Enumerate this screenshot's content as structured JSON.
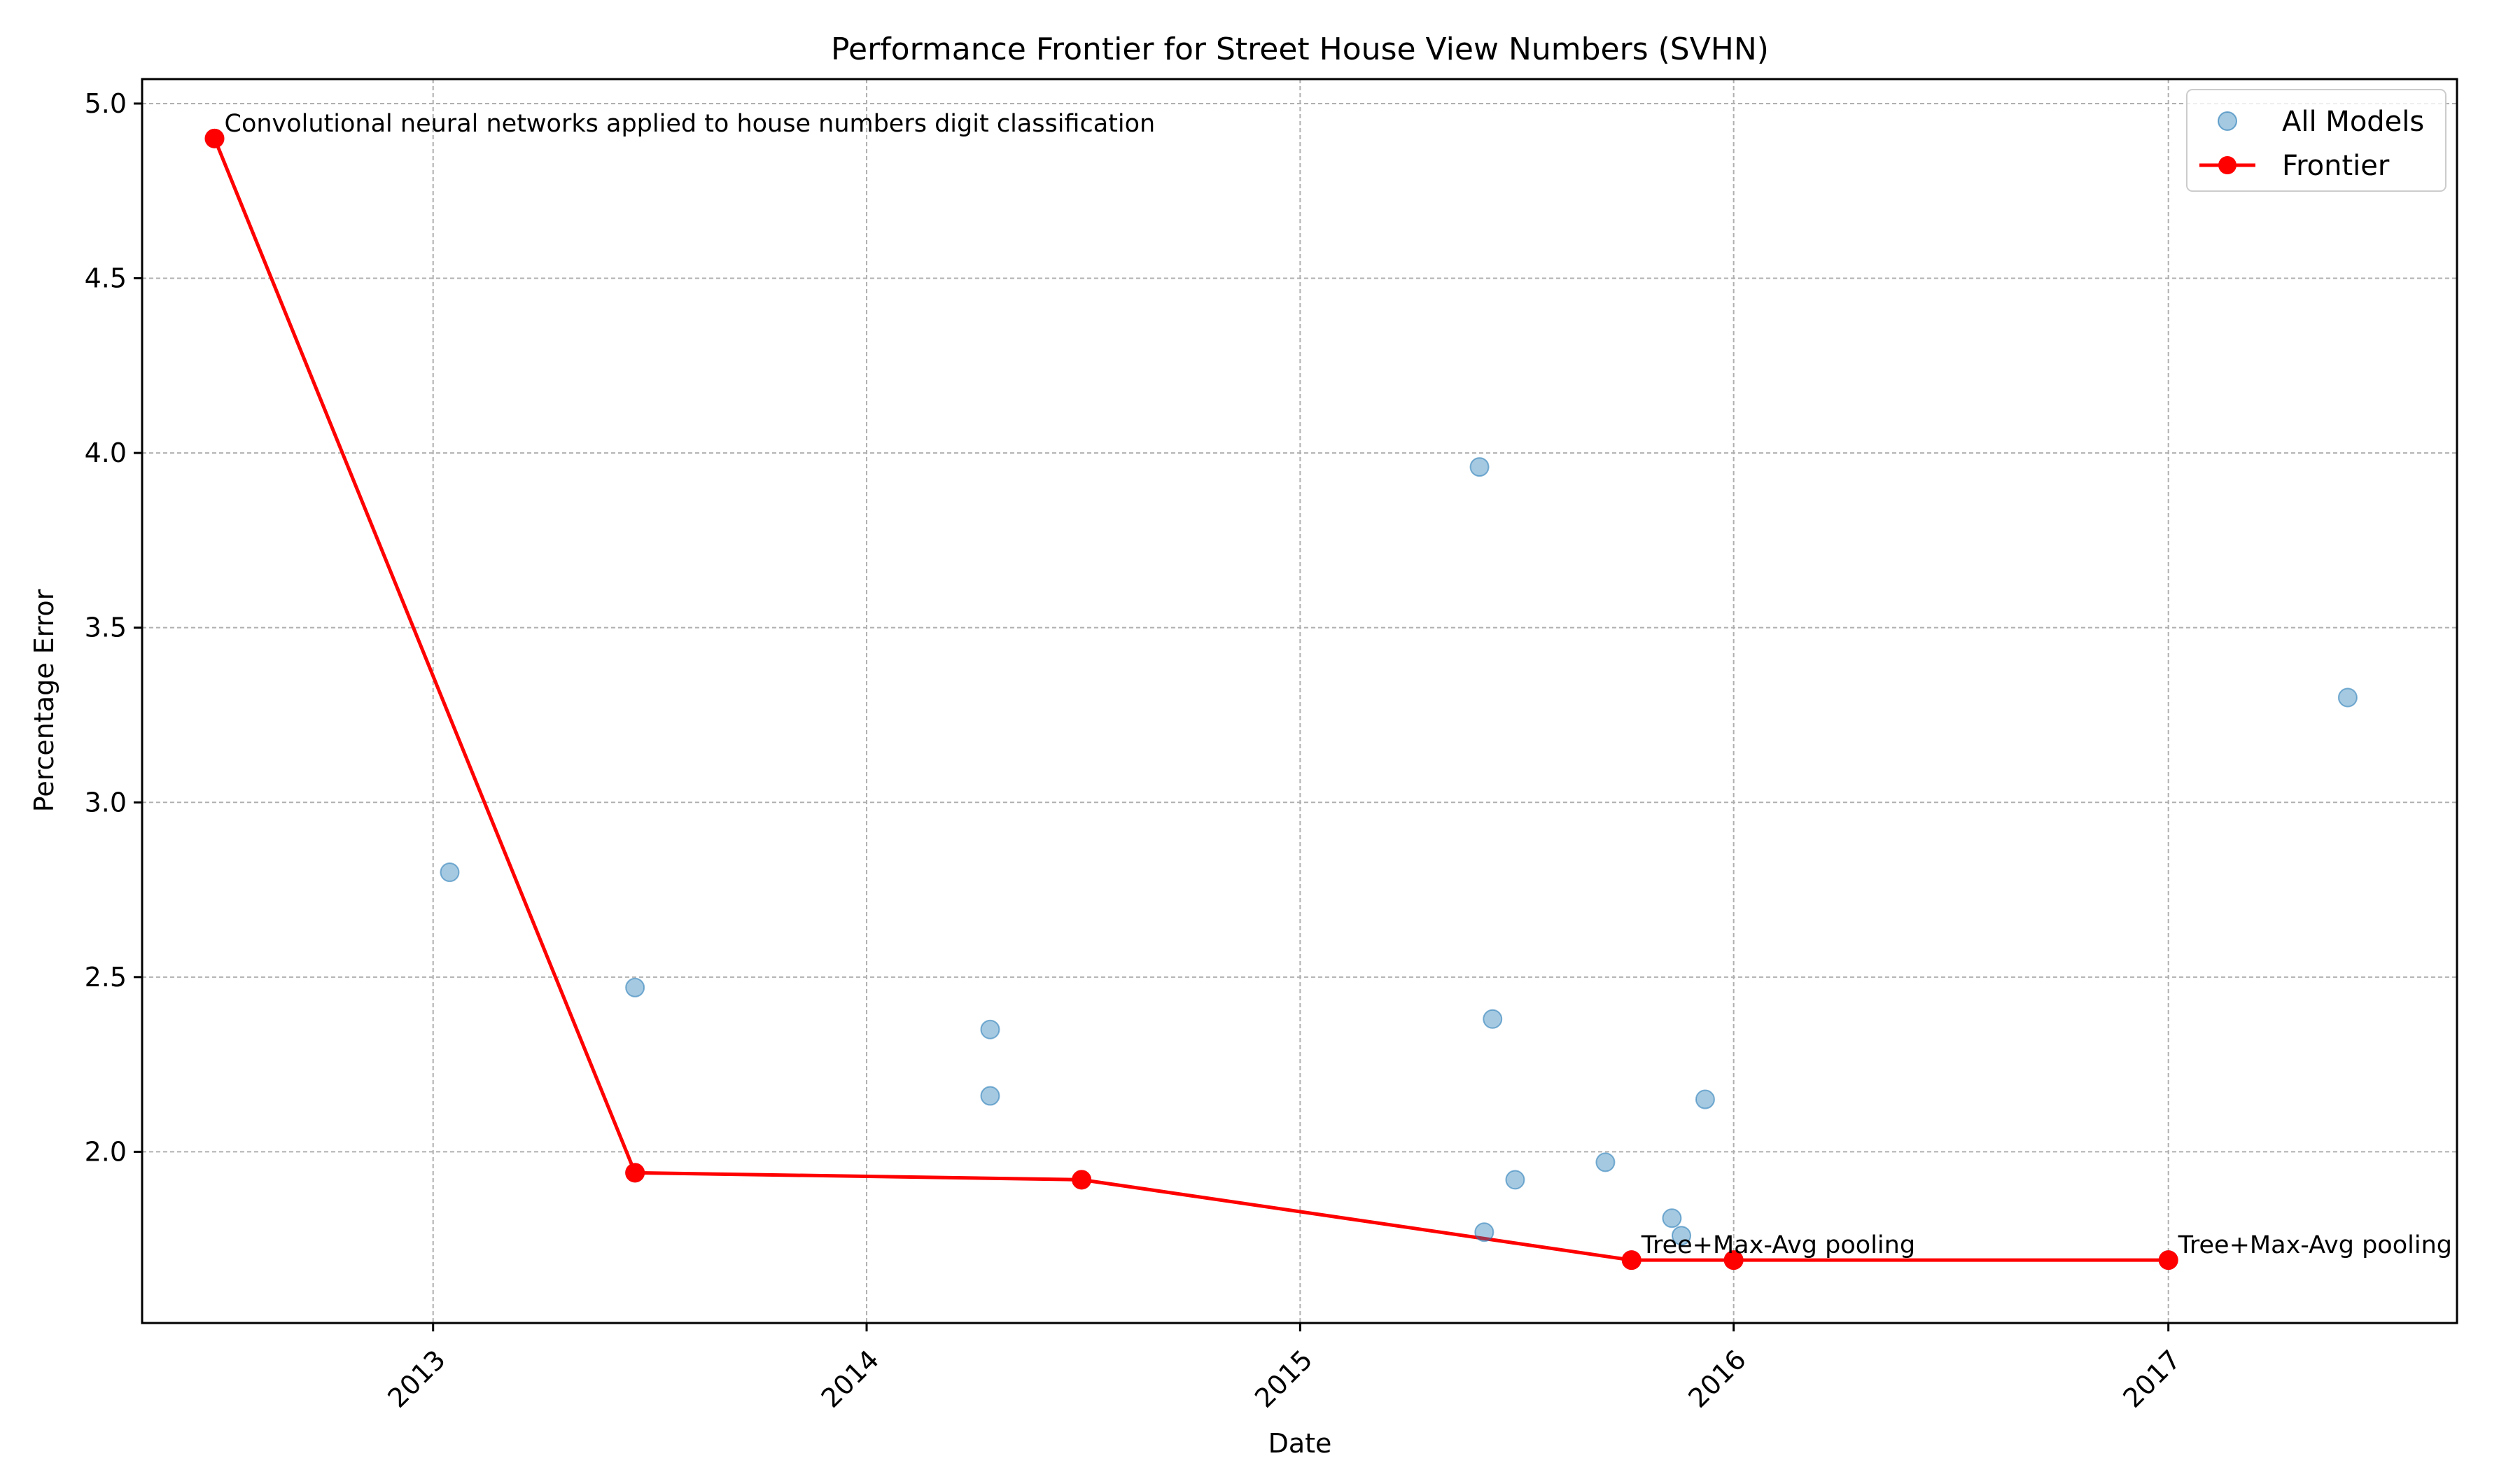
{
  "chart_data": {
    "type": "scatter",
    "title": "Performance Frontier for Street House View Numbers (SVHN)",
    "xlabel": "Date",
    "ylabel": "Percentage Error",
    "x_range": [
      "2012-05-01",
      "2017-09-01"
    ],
    "ylim": [
      1.51,
      5.07
    ],
    "grid": true,
    "legend_position": "top-right",
    "x_ticks": [
      {
        "date": "2013-01-01",
        "label": "2013"
      },
      {
        "date": "2014-01-01",
        "label": "2014"
      },
      {
        "date": "2015-01-01",
        "label": "2015"
      },
      {
        "date": "2016-01-01",
        "label": "2016"
      },
      {
        "date": "2017-01-01",
        "label": "2017"
      }
    ],
    "y_ticks": [
      {
        "value": 2.0,
        "label": "2.0"
      },
      {
        "value": 2.5,
        "label": "2.5"
      },
      {
        "value": 3.0,
        "label": "3.0"
      },
      {
        "value": 3.5,
        "label": "3.5"
      },
      {
        "value": 4.0,
        "label": "4.0"
      },
      {
        "value": 4.5,
        "label": "4.5"
      },
      {
        "value": 5.0,
        "label": "5.0"
      }
    ],
    "series": [
      {
        "name": "All Models",
        "kind": "scatter",
        "color": "#1f77b4",
        "points": [
          {
            "x": "2012-07-01",
            "y": 4.9
          },
          {
            "x": "2013-01-15",
            "y": 2.8
          },
          {
            "x": "2013-06-20",
            "y": 2.47
          },
          {
            "x": "2013-06-20",
            "y": 1.94
          },
          {
            "x": "2014-04-15",
            "y": 2.35
          },
          {
            "x": "2014-04-15",
            "y": 2.16
          },
          {
            "x": "2014-07-01",
            "y": 1.92
          },
          {
            "x": "2015-06-01",
            "y": 3.96
          },
          {
            "x": "2015-06-12",
            "y": 2.38
          },
          {
            "x": "2015-06-05",
            "y": 1.77
          },
          {
            "x": "2015-07-01",
            "y": 1.92
          },
          {
            "x": "2015-09-15",
            "y": 1.97
          },
          {
            "x": "2015-10-07",
            "y": 1.69
          },
          {
            "x": "2015-11-10",
            "y": 1.81
          },
          {
            "x": "2015-11-18",
            "y": 1.76
          },
          {
            "x": "2015-12-08",
            "y": 2.15
          },
          {
            "x": "2016-01-01",
            "y": 1.69
          },
          {
            "x": "2017-01-01",
            "y": 1.69
          },
          {
            "x": "2017-06-01",
            "y": 3.3
          }
        ]
      },
      {
        "name": "Frontier",
        "kind": "line",
        "color": "#ff0000",
        "points": [
          {
            "x": "2012-07-01",
            "y": 4.9
          },
          {
            "x": "2013-06-20",
            "y": 1.94
          },
          {
            "x": "2014-07-01",
            "y": 1.92
          },
          {
            "x": "2015-10-07",
            "y": 1.69
          },
          {
            "x": "2016-01-01",
            "y": 1.69
          },
          {
            "x": "2017-01-01",
            "y": 1.69
          }
        ]
      }
    ],
    "annotations": [
      {
        "x": "2012-07-01",
        "y": 4.9,
        "text": "Convolutional neural networks applied to house numbers digit classification"
      },
      {
        "x": "2015-10-07",
        "y": 1.69,
        "text": "Tree+Max-Avg pooling"
      },
      {
        "x": "2017-01-01",
        "y": 1.69,
        "text": "Tree+Max-Avg pooling"
      }
    ]
  }
}
